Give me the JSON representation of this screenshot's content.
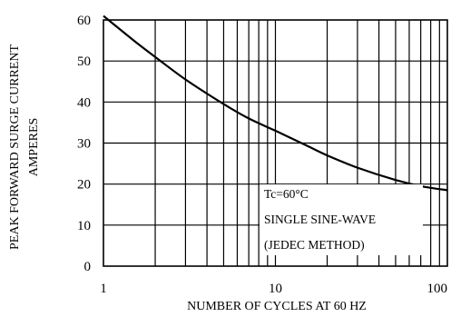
{
  "chart_data": {
    "type": "line",
    "xscale": "log",
    "xlim": [
      1,
      100
    ],
    "ylim": [
      0,
      60
    ],
    "xticks": [
      "1",
      "10",
      "100"
    ],
    "yticks": [
      "0",
      "10",
      "20",
      "30",
      "40",
      "50",
      "60"
    ],
    "xlabel": "NUMBER OF CYCLES AT 60 HZ",
    "ylabel_lines": [
      "PEAK FORWARD SURGE CURRENT",
      "AMPERES"
    ],
    "annotations": [
      "Tc=60°C",
      "SINGLE SINE-WAVE",
      "(JEDEC METHOD)"
    ],
    "grid": true,
    "x": [
      1,
      1.5,
      2,
      3,
      5,
      7,
      10,
      15,
      20,
      30,
      50,
      70,
      100
    ],
    "y": [
      61,
      55,
      51,
      45.5,
      39.5,
      36,
      33,
      29.5,
      27,
      24,
      21,
      19.5,
      18.5
    ]
  }
}
